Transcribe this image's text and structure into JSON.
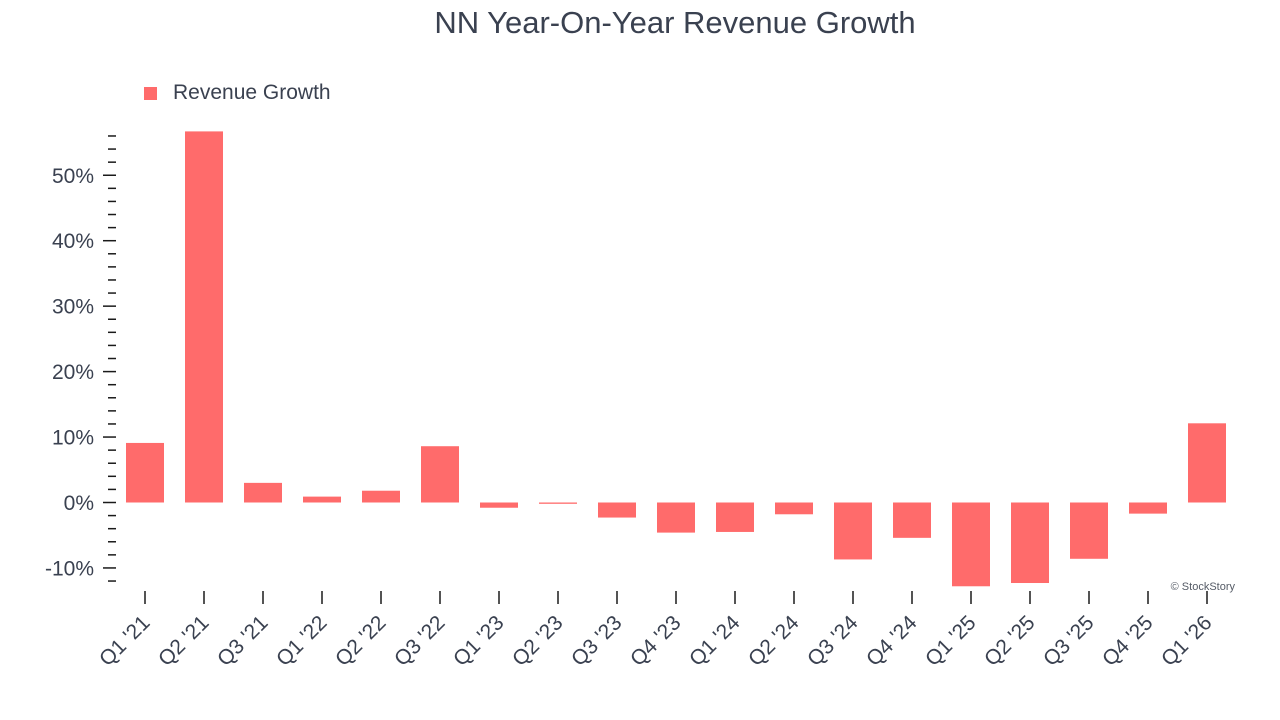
{
  "chart_data": {
    "type": "bar",
    "title": "NN Year-On-Year Revenue Growth",
    "xlabel": "",
    "ylabel": "",
    "categories": [
      "Q1 '21",
      "Q2 '21",
      "Q3 '21",
      "Q1 '22",
      "Q2 '22",
      "Q3 '22",
      "Q1 '23",
      "Q2 '23",
      "Q3 '23",
      "Q4 '23",
      "Q1 '24",
      "Q2 '24",
      "Q3 '24",
      "Q4 '24",
      "Q1 '25",
      "Q2 '25",
      "Q3 '25",
      "Q4 '25",
      "Q1 '26"
    ],
    "series": [
      {
        "name": "Revenue Growth",
        "values": [
          9.1,
          56.7,
          3.0,
          0.9,
          1.8,
          8.6,
          -0.8,
          -0.2,
          -2.3,
          -4.6,
          -4.5,
          -1.8,
          -8.7,
          -5.4,
          -12.8,
          -12.3,
          -8.6,
          -1.7,
          12.1
        ]
      }
    ],
    "ylim": [
      -12.9,
      56.7
    ],
    "yticks": [
      -10,
      0,
      10,
      20,
      30,
      40,
      50
    ],
    "ytick_labels": [
      "-10%",
      "0%",
      "10%",
      "20%",
      "30%",
      "40%",
      "50%"
    ],
    "legend": "top-left",
    "grid": false
  },
  "colors": {
    "bar": "#ff6b6b",
    "text": "#3a4150",
    "axis": "#1a1a1a"
  },
  "credit": "© StockStory"
}
